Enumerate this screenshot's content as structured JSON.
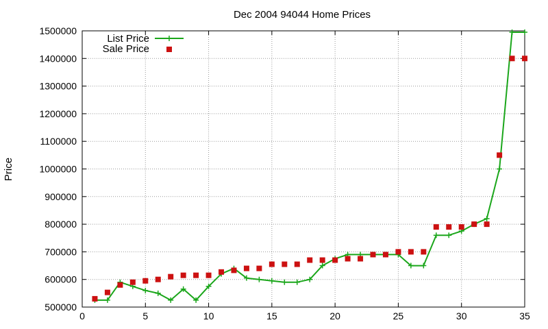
{
  "chart_data": {
    "type": "line",
    "title": "Dec 2004 94044 Home Prices",
    "xlabel": "",
    "ylabel": "Price",
    "xlim": [
      0,
      35
    ],
    "ylim": [
      500000,
      1500000
    ],
    "x_ticks": [
      0,
      5,
      10,
      15,
      20,
      25,
      30,
      35
    ],
    "y_ticks": [
      500000,
      600000,
      700000,
      800000,
      900000,
      1000000,
      1100000,
      1200000,
      1300000,
      1400000,
      1500000
    ],
    "grid": true,
    "legend_position": "top-left",
    "series": [
      {
        "name": "List Price",
        "style": "line-with-plus-markers",
        "color": "#1aa61a",
        "x": [
          1,
          2,
          3,
          4,
          5,
          6,
          7,
          8,
          9,
          10,
          11,
          12,
          13,
          14,
          15,
          16,
          17,
          18,
          19,
          20,
          21,
          22,
          23,
          24,
          25,
          26,
          27,
          28,
          29,
          30,
          31,
          32,
          33,
          34,
          35
        ],
        "values": [
          525000,
          525000,
          590000,
          575000,
          560000,
          550000,
          525000,
          565000,
          525000,
          575000,
          620000,
          640000,
          605000,
          600000,
          595000,
          590000,
          590000,
          600000,
          650000,
          675000,
          690000,
          690000,
          690000,
          690000,
          690000,
          650000,
          650000,
          760000,
          760000,
          775000,
          800000,
          820000,
          1000000,
          1495000,
          1495000
        ]
      },
      {
        "name": "Sale Price",
        "style": "square-markers",
        "color": "#cc1111",
        "x": [
          1,
          2,
          3,
          4,
          5,
          6,
          7,
          8,
          9,
          10,
          11,
          12,
          13,
          14,
          15,
          16,
          17,
          18,
          19,
          20,
          21,
          22,
          23,
          24,
          25,
          26,
          27,
          28,
          29,
          30,
          31,
          32,
          33,
          34,
          35
        ],
        "values": [
          530000,
          553000,
          580000,
          590000,
          595000,
          600000,
          610000,
          615000,
          615000,
          615000,
          627000,
          633000,
          640000,
          640000,
          655000,
          655000,
          655000,
          670000,
          670000,
          670000,
          675000,
          675000,
          690000,
          690000,
          700000,
          700000,
          700000,
          790000,
          790000,
          790000,
          800000,
          800000,
          1050000,
          1400000,
          1400000
        ]
      }
    ]
  }
}
